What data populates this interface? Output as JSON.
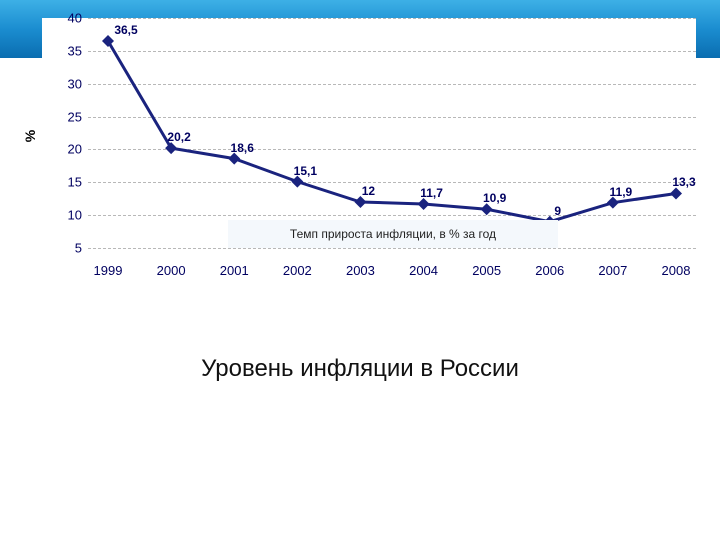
{
  "title": "Уровень инфляции в России",
  "chart": {
    "type": "line",
    "caption": "Темп прироста инфляции, в % за год",
    "ylabel": "%",
    "ylim": [
      5,
      40
    ],
    "yticks": [
      5,
      10,
      15,
      20,
      25,
      30,
      35,
      40
    ],
    "categories": [
      "1999",
      "2000",
      "2001",
      "2002",
      "2003",
      "2004",
      "2005",
      "2006",
      "2007",
      "2008"
    ],
    "values": [
      36.5,
      20.2,
      18.6,
      15.1,
      12,
      11.7,
      10.9,
      9,
      11.9,
      13.3
    ],
    "value_labels": [
      "36,5",
      "20,2",
      "18,6",
      "15,1",
      "12",
      "11,7",
      "10,9",
      "9",
      "11,9",
      "13,3"
    ],
    "line_color": "#1a237e",
    "line_width": 3,
    "marker_color": "#1a237e",
    "marker_size": 6,
    "grid_color": "#b8b8b8",
    "tick_color": "#000060",
    "label_fontsize": 12,
    "tick_fontsize": 13,
    "background_color": "#ffffff",
    "caption_bg": "#f4f8fc",
    "band_gradient": [
      "#3db0e6",
      "#1b8dd0",
      "#0a6db0"
    ]
  }
}
